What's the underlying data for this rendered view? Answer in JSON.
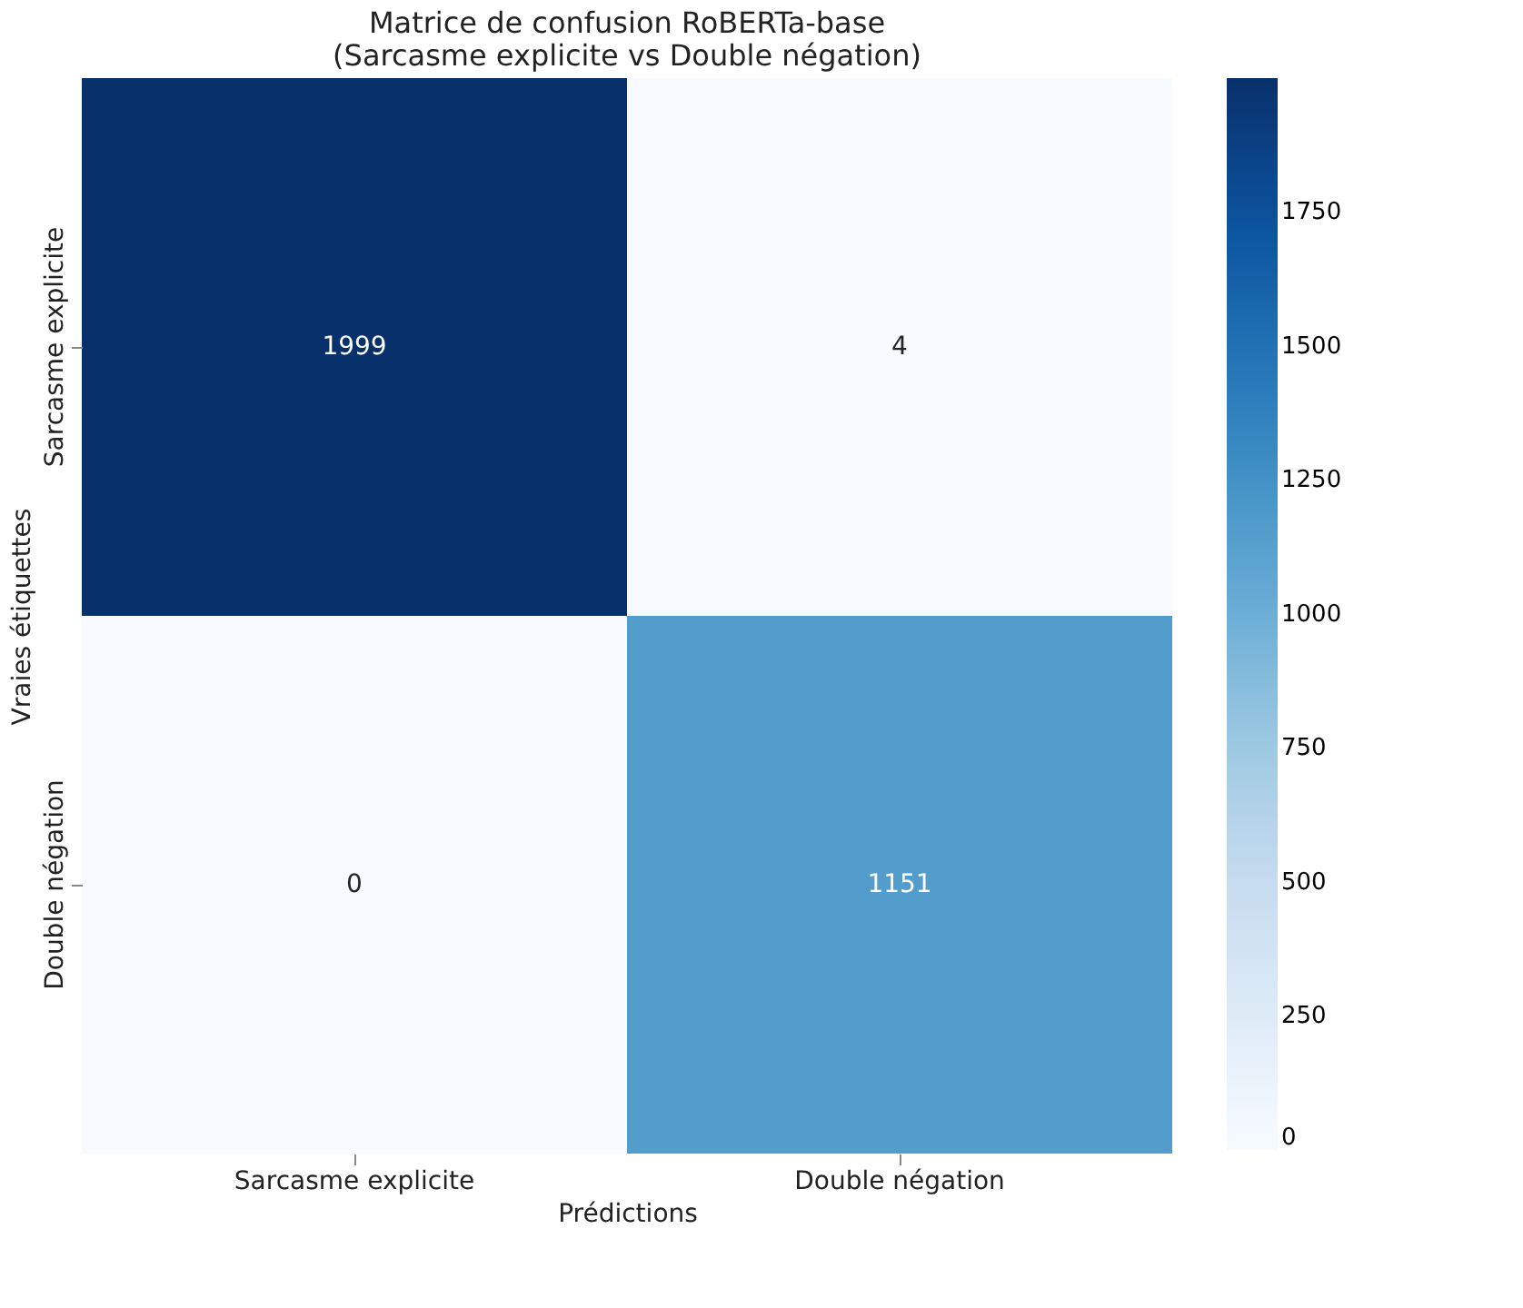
{
  "chart_data": {
    "type": "heatmap",
    "title": "Matrice de confusion RoBERTa-base\n(Sarcasme explicite vs Double négation)",
    "xlabel": "Prédictions",
    "ylabel": "Vraies étiquettes",
    "categories": [
      "Sarcasme explicite",
      "Double négation"
    ],
    "y_categories": [
      "Sarcasme explicite",
      "Double négation"
    ],
    "cells": [
      [
        1999,
        4
      ],
      [
        0,
        1151
      ]
    ],
    "data_labels": true,
    "clim": [
      0,
      1999
    ],
    "cticks": [
      0,
      250,
      500,
      750,
      1000,
      1250,
      1500,
      1750
    ]
  }
}
